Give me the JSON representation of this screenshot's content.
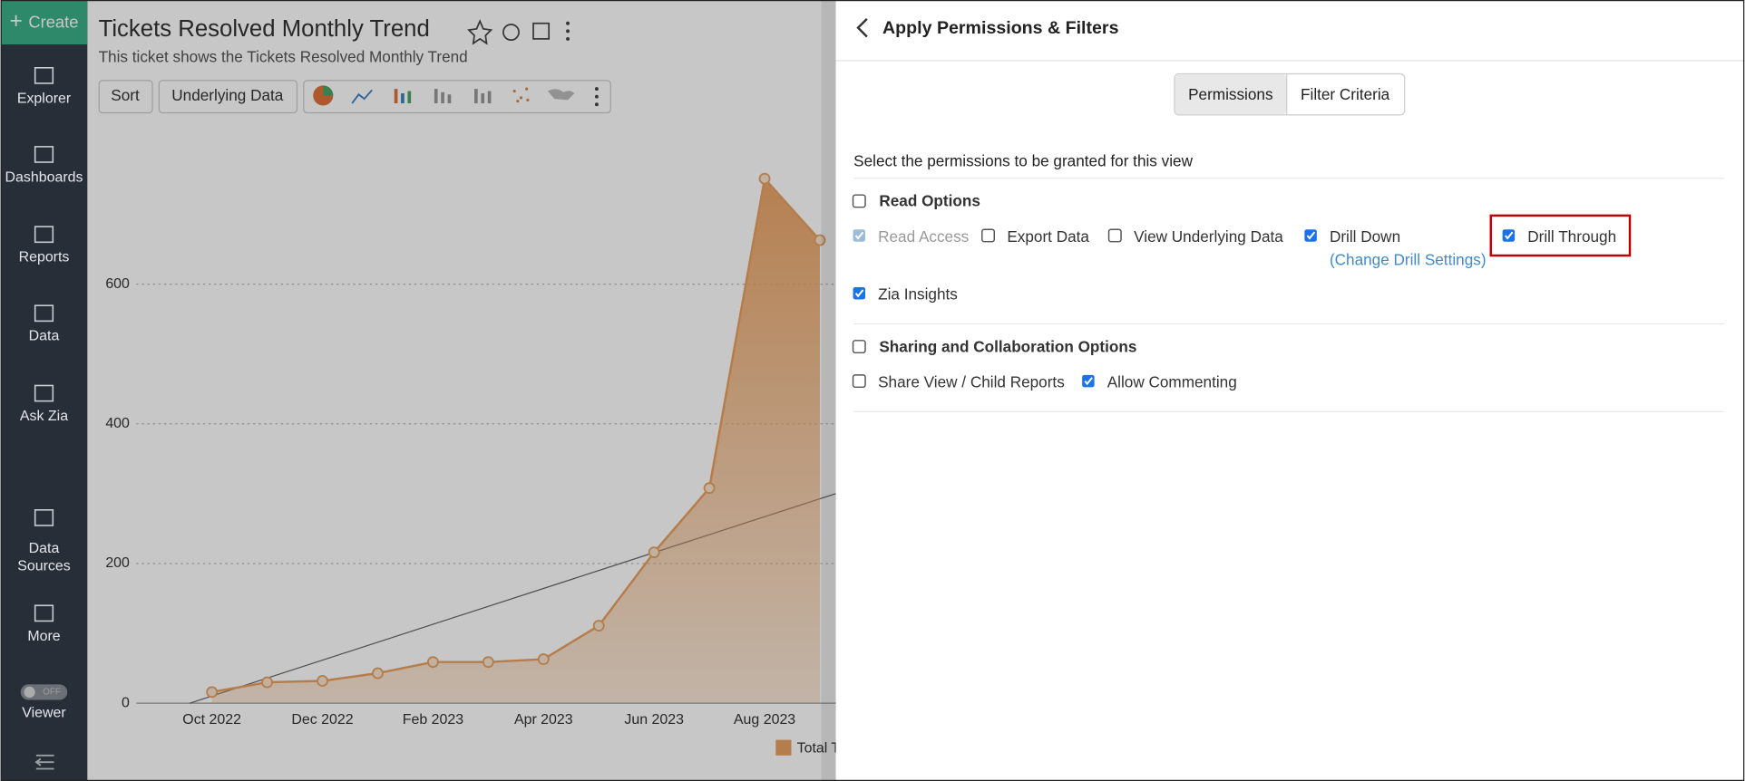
{
  "sidebar": {
    "create": "Create",
    "items": [
      {
        "lines": [
          "Explorer"
        ]
      },
      {
        "lines": [
          "Dashboards"
        ]
      },
      {
        "lines": [
          "Reports"
        ]
      },
      {
        "lines": [
          "Data"
        ]
      },
      {
        "lines": [
          "Ask Zia"
        ]
      },
      {
        "lines": [
          "Data",
          "Sources"
        ]
      },
      {
        "lines": [
          "More"
        ]
      },
      {
        "lines": [
          "Viewer"
        ]
      }
    ],
    "toggle": "OFF"
  },
  "report": {
    "title": "Tickets Resolved Monthly Trend",
    "subtitle": "This ticket shows the Tickets Resolved Monthly Trend",
    "toolbar": [
      "Sort",
      "Underlying Data"
    ]
  },
  "chart_data": {
    "type": "area",
    "categories": [
      "Oct 2022",
      null,
      "Dec 2022",
      null,
      "Feb 2023",
      null,
      "Apr 2023",
      null,
      "Jun 2023",
      null,
      "Aug 2023",
      null
    ],
    "series": [
      {
        "name": "Total T",
        "color": "#e8a060",
        "values": [
          16,
          30,
          32,
          43,
          59,
          59,
          63,
          111,
          216,
          308,
          751,
          663
        ]
      }
    ],
    "ylim": [
      0,
      800
    ],
    "yticks": [
      0,
      200,
      400,
      600
    ],
    "grid": true
  },
  "panel": {
    "title": "Apply Permissions & Filters",
    "tabs": [
      "Permissions",
      "Filter Criteria"
    ],
    "active_tab": 0,
    "instruction": "Select the permissions to be granted for this view",
    "sections": [
      {
        "label": "Read Options",
        "checked": false,
        "options": [
          {
            "label": "Read Access",
            "checked": true,
            "disabled": true
          },
          {
            "label": "Export Data",
            "checked": false
          },
          {
            "label": "View Underlying Data",
            "checked": false
          },
          {
            "label": "Drill Down",
            "checked": true
          },
          {
            "label": "Drill Through",
            "checked": true
          },
          {
            "label": "Zia Insights",
            "checked": true
          }
        ]
      },
      {
        "label": "Sharing and Collaboration Options",
        "checked": false,
        "options": [
          {
            "label": "Share View / Child Reports",
            "checked": false
          },
          {
            "label": "Allow Commenting",
            "checked": true
          }
        ]
      }
    ],
    "drill_settings_link": "(Change Drill Settings)"
  }
}
